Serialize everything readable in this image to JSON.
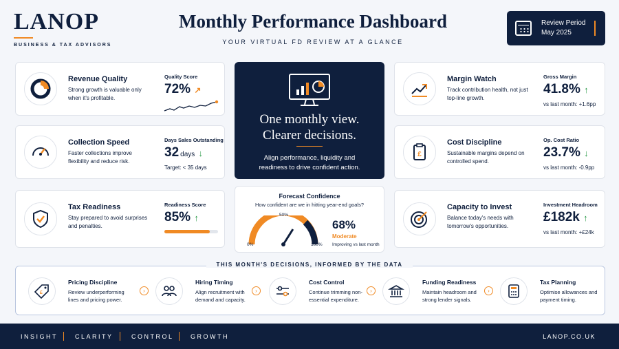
{
  "brand": {
    "logo": "LANOP",
    "tagline": "BUSINESS & TAX ADVISORS"
  },
  "header": {
    "title": "Monthly Performance Dashboard",
    "subtitle": "YOUR VIRTUAL FD REVIEW AT A GLANCE"
  },
  "review": {
    "line1": "Review Period",
    "line2": "May 2025"
  },
  "cards": {
    "revenue": {
      "title": "Revenue Quality",
      "desc": "Strong growth is valuable only when it's profitable.",
      "label": "Quality Score",
      "value": "72%",
      "icon": "pie-chart-icon"
    },
    "collection": {
      "title": "Collection Speed",
      "desc": "Faster collections improve flexibility and reduce risk.",
      "label": "Days Sales Outstanding",
      "value": "32",
      "unit": "days",
      "sub": "Target: < 35 days",
      "icon": "speedometer-icon"
    },
    "tax": {
      "title": "Tax Readiness",
      "desc": "Stay prepared to avoid surprises and penalties.",
      "label": "Readiness Score",
      "value": "85%",
      "progress": 0.85,
      "icon": "shield-check-icon"
    },
    "margin": {
      "title": "Margin Watch",
      "desc": "Track contribution health, not just top-line growth.",
      "label": "Gross Margin",
      "value": "41.8%",
      "sub": "vs last month: +1.6pp",
      "icon": "trend-up-icon"
    },
    "cost": {
      "title": "Cost Discipline",
      "desc": "Sustainable margins depend on controlled spend.",
      "label": "Op. Cost Ratio",
      "value": "23.7%",
      "sub": "vs last month: -0.9pp",
      "icon": "clipboard-pound-icon"
    },
    "capacity": {
      "title": "Capacity to Invest",
      "desc": "Balance today's needs with tomorrow's opportunities.",
      "label": "Investment Headroom",
      "value": "£182k",
      "sub": "vs last month: +£24k",
      "icon": "target-icon"
    }
  },
  "hero": {
    "headline1": "One monthly view.",
    "headline2": "Clearer decisions.",
    "text": "Align performance, liquidity and readiness to drive confident action.",
    "icon": "monitor-chart-icon"
  },
  "forecast": {
    "title": "Forecast Confidence",
    "question": "How confident are we in hitting year-end goals?",
    "value": "68%",
    "level": 0.68,
    "rating": "Moderate",
    "note": "Improving vs last month",
    "g0": "0%",
    "g50": "50%",
    "g100": "100%"
  },
  "decisions": {
    "title": "THIS MONTH'S DECISIONS, INFORMED BY THE DATA",
    "items": [
      {
        "title": "Pricing Discipline",
        "desc": "Review underperforming lines and pricing power.",
        "icon": "price-tag-icon"
      },
      {
        "title": "Hiring Timing",
        "desc": "Align recruitment with demand and capacity.",
        "icon": "people-icon"
      },
      {
        "title": "Cost Control",
        "desc": "Continue trimming non-essential expenditure.",
        "icon": "sliders-icon"
      },
      {
        "title": "Funding Readiness",
        "desc": "Maintain headroom and strong lender signals.",
        "icon": "bank-icon"
      },
      {
        "title": "Tax Planning",
        "desc": "Optimise allowances and payment timing.",
        "icon": "calculator-icon"
      }
    ]
  },
  "footer": {
    "items": [
      "INSIGHT",
      "CLARITY",
      "CONTROL",
      "GROWTH"
    ],
    "url": "LANOP.CO.UK"
  },
  "colors": {
    "navy": "#0f1f3d",
    "accent": "#f08a24",
    "positive": "#2e9c4a"
  }
}
